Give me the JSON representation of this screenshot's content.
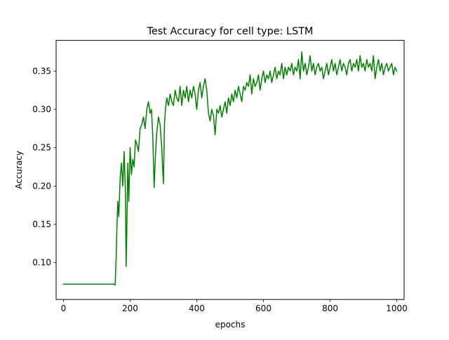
{
  "chart_data": {
    "type": "line",
    "title": "Test Accuracy for cell type: LSTM",
    "xlabel": "epochs",
    "ylabel": "Accuracy",
    "xlim": [
      -22,
      1022
    ],
    "ylim": [
      0.052,
      0.39
    ],
    "x_ticks": [
      0,
      200,
      400,
      600,
      800,
      1000
    ],
    "x_tick_labels": [
      "0",
      "200",
      "400",
      "600",
      "800",
      "1000"
    ],
    "y_ticks": [
      0.1,
      0.15,
      0.2,
      0.25,
      0.3,
      0.35
    ],
    "y_tick_labels": [
      "0.10",
      "0.15",
      "0.20",
      "0.25",
      "0.30",
      "0.35"
    ],
    "grid": false,
    "legend": "none",
    "series": [
      {
        "color": "#008000",
        "x": [
          0,
          50,
          100,
          150,
          155,
          158,
          160,
          163,
          166,
          170,
          174,
          178,
          182,
          186,
          188,
          190,
          193,
          196,
          200,
          204,
          208,
          212,
          216,
          220,
          225,
          230,
          235,
          240,
          245,
          250,
          255,
          260,
          264,
          268,
          272,
          276,
          280,
          285,
          290,
          295,
          298,
          300,
          303,
          306,
          310,
          315,
          320,
          325,
          330,
          335,
          340,
          345,
          350,
          355,
          360,
          365,
          370,
          375,
          380,
          385,
          390,
          395,
          400,
          405,
          410,
          415,
          420,
          425,
          430,
          435,
          440,
          445,
          450,
          455,
          460,
          465,
          470,
          475,
          480,
          485,
          490,
          495,
          500,
          505,
          510,
          515,
          520,
          525,
          530,
          535,
          540,
          545,
          550,
          555,
          560,
          565,
          570,
          575,
          580,
          585,
          590,
          595,
          600,
          605,
          610,
          615,
          620,
          625,
          630,
          635,
          640,
          645,
          650,
          655,
          660,
          665,
          670,
          675,
          680,
          685,
          690,
          695,
          700,
          705,
          710,
          715,
          720,
          725,
          730,
          735,
          740,
          745,
          750,
          755,
          760,
          765,
          770,
          775,
          780,
          785,
          790,
          795,
          800,
          805,
          810,
          815,
          820,
          825,
          830,
          835,
          840,
          845,
          850,
          855,
          860,
          865,
          870,
          875,
          880,
          885,
          890,
          895,
          900,
          905,
          910,
          915,
          920,
          925,
          930,
          935,
          940,
          945,
          950,
          955,
          960,
          965,
          970,
          975,
          980,
          985,
          990,
          995,
          1000
        ],
        "y": [
          0.072,
          0.072,
          0.072,
          0.072,
          0.071,
          0.105,
          0.14,
          0.18,
          0.16,
          0.21,
          0.23,
          0.2,
          0.245,
          0.19,
          0.095,
          0.14,
          0.23,
          0.18,
          0.25,
          0.215,
          0.235,
          0.225,
          0.26,
          0.255,
          0.245,
          0.275,
          0.28,
          0.29,
          0.275,
          0.3,
          0.31,
          0.295,
          0.3,
          0.265,
          0.198,
          0.24,
          0.27,
          0.29,
          0.28,
          0.25,
          0.22,
          0.203,
          0.28,
          0.3,
          0.315,
          0.305,
          0.32,
          0.31,
          0.305,
          0.325,
          0.315,
          0.31,
          0.33,
          0.305,
          0.325,
          0.315,
          0.33,
          0.31,
          0.325,
          0.315,
          0.33,
          0.32,
          0.3,
          0.325,
          0.335,
          0.315,
          0.33,
          0.34,
          0.325,
          0.295,
          0.285,
          0.3,
          0.292,
          0.267,
          0.3,
          0.295,
          0.305,
          0.29,
          0.3,
          0.31,
          0.295,
          0.315,
          0.305,
          0.32,
          0.31,
          0.325,
          0.315,
          0.33,
          0.32,
          0.31,
          0.33,
          0.325,
          0.335,
          0.33,
          0.345,
          0.32,
          0.34,
          0.33,
          0.335,
          0.345,
          0.325,
          0.34,
          0.35,
          0.335,
          0.345,
          0.34,
          0.35,
          0.335,
          0.345,
          0.355,
          0.34,
          0.35,
          0.345,
          0.36,
          0.34,
          0.355,
          0.345,
          0.355,
          0.35,
          0.36,
          0.345,
          0.355,
          0.35,
          0.365,
          0.34,
          0.375,
          0.35,
          0.36,
          0.345,
          0.355,
          0.37,
          0.35,
          0.36,
          0.345,
          0.355,
          0.36,
          0.35,
          0.355,
          0.34,
          0.35,
          0.36,
          0.345,
          0.355,
          0.365,
          0.35,
          0.36,
          0.345,
          0.355,
          0.365,
          0.35,
          0.36,
          0.355,
          0.345,
          0.36,
          0.365,
          0.35,
          0.36,
          0.355,
          0.365,
          0.35,
          0.37,
          0.355,
          0.36,
          0.35,
          0.365,
          0.355,
          0.36,
          0.35,
          0.37,
          0.34,
          0.355,
          0.365,
          0.35,
          0.36,
          0.345,
          0.355,
          0.36,
          0.35,
          0.355,
          0.36,
          0.345,
          0.355,
          0.35
        ]
      }
    ]
  }
}
